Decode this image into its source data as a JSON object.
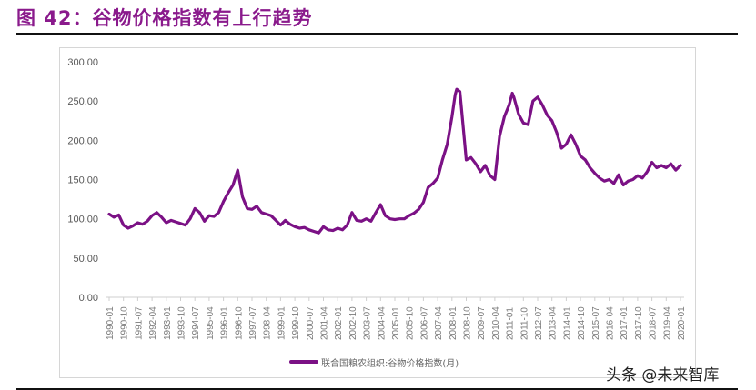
{
  "figure": {
    "title": "图 42：谷物价格指数有上行趋势",
    "watermark": "头条 @未来智库"
  },
  "chart_data": {
    "type": "line",
    "title": "",
    "xlabel": "",
    "ylabel": "",
    "ylim": [
      0,
      300
    ],
    "yticks": [
      "0.00",
      "50.00",
      "100.00",
      "150.00",
      "200.00",
      "250.00",
      "300.00"
    ],
    "xticks": [
      "1990-01",
      "1990-10",
      "1991-07",
      "1992-04",
      "1993-01",
      "1993-10",
      "1994-07",
      "1995-04",
      "1996-01",
      "1996-10",
      "1997-07",
      "1998-04",
      "1999-01",
      "1999-10",
      "2000-07",
      "2001-04",
      "2002-01",
      "2002-10",
      "2003-07",
      "2004-04",
      "2005-01",
      "2005-10",
      "2006-07",
      "2007-04",
      "2008-01",
      "2008-10",
      "2009-07",
      "2010-04",
      "2011-01",
      "2011-10",
      "2012-07",
      "2013-04",
      "2014-01",
      "2014-10",
      "2015-07",
      "2016-04",
      "2017-01",
      "2017-10",
      "2018-07",
      "2019-04",
      "2020-01"
    ],
    "grid": false,
    "legend_position": "bottom",
    "line_color": "#7b1185",
    "series": [
      {
        "name": "联合国粮农组织:谷物价格指数(月)",
        "x": [
          "1990-01",
          "1990-04",
          "1990-07",
          "1990-10",
          "1991-01",
          "1991-04",
          "1991-07",
          "1991-10",
          "1992-01",
          "1992-04",
          "1992-07",
          "1992-10",
          "1993-01",
          "1993-04",
          "1993-07",
          "1993-10",
          "1994-01",
          "1994-04",
          "1994-07",
          "1994-10",
          "1995-01",
          "1995-04",
          "1995-07",
          "1995-10",
          "1996-01",
          "1996-04",
          "1996-07",
          "1996-10",
          "1997-01",
          "1997-04",
          "1997-07",
          "1997-10",
          "1998-01",
          "1998-04",
          "1998-07",
          "1998-10",
          "1999-01",
          "1999-04",
          "1999-07",
          "1999-10",
          "2000-01",
          "2000-04",
          "2000-07",
          "2000-10",
          "2001-01",
          "2001-04",
          "2001-07",
          "2001-10",
          "2002-01",
          "2002-04",
          "2002-07",
          "2002-10",
          "2003-01",
          "2003-04",
          "2003-07",
          "2003-10",
          "2004-01",
          "2004-04",
          "2004-07",
          "2004-10",
          "2005-01",
          "2005-04",
          "2005-07",
          "2005-10",
          "2006-01",
          "2006-04",
          "2006-07",
          "2006-10",
          "2007-01",
          "2007-04",
          "2007-07",
          "2007-10",
          "2008-01",
          "2008-03",
          "2008-04",
          "2008-06",
          "2008-07",
          "2008-10",
          "2009-01",
          "2009-04",
          "2009-07",
          "2009-10",
          "2010-01",
          "2010-04",
          "2010-07",
          "2010-10",
          "2011-01",
          "2011-03",
          "2011-04",
          "2011-07",
          "2011-10",
          "2012-01",
          "2012-04",
          "2012-07",
          "2012-10",
          "2013-01",
          "2013-04",
          "2013-07",
          "2013-10",
          "2014-01",
          "2014-04",
          "2014-07",
          "2014-10",
          "2015-01",
          "2015-04",
          "2015-07",
          "2015-10",
          "2016-01",
          "2016-04",
          "2016-07",
          "2016-10",
          "2017-01",
          "2017-04",
          "2017-07",
          "2017-10",
          "2018-01",
          "2018-04",
          "2018-07",
          "2018-10",
          "2019-01",
          "2019-04",
          "2019-07",
          "2019-10",
          "2020-01"
        ],
        "values": [
          106,
          102,
          105,
          92,
          88,
          91,
          95,
          93,
          97,
          104,
          108,
          102,
          95,
          98,
          96,
          94,
          92,
          100,
          113,
          108,
          97,
          104,
          103,
          108,
          122,
          133,
          143,
          162,
          128,
          113,
          112,
          116,
          108,
          106,
          104,
          98,
          92,
          98,
          93,
          90,
          88,
          89,
          86,
          84,
          82,
          90,
          86,
          85,
          88,
          86,
          92,
          108,
          98,
          97,
          100,
          97,
          108,
          118,
          104,
          100,
          99,
          100,
          100,
          104,
          107,
          112,
          121,
          140,
          145,
          152,
          175,
          195,
          230,
          258,
          265,
          262,
          240,
          175,
          178,
          170,
          160,
          168,
          155,
          150,
          205,
          230,
          245,
          260,
          255,
          233,
          222,
          220,
          250,
          255,
          245,
          232,
          225,
          210,
          190,
          195,
          207,
          195,
          180,
          175,
          165,
          158,
          152,
          148,
          150,
          145,
          156,
          143,
          148,
          150,
          155,
          152,
          160,
          172,
          165,
          168,
          165,
          170,
          162,
          168
        ]
      }
    ]
  },
  "legend": {
    "label": "联合国粮农组织:谷物价格指数(月)"
  }
}
